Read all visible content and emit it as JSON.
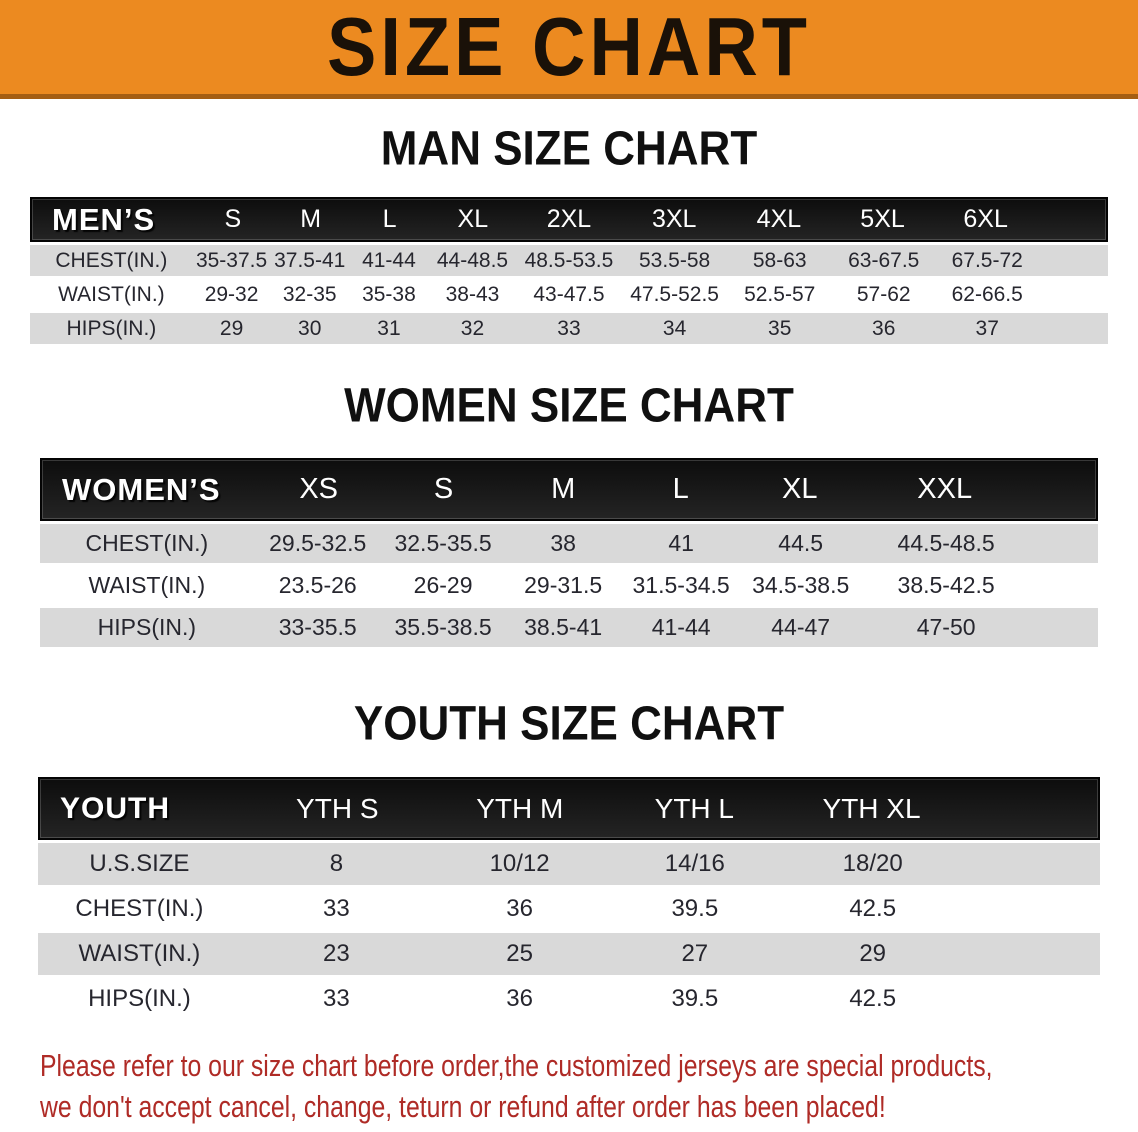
{
  "banner": {
    "title": "SIZE CHART",
    "bg_color": "#EC8A20",
    "border_color": "#A55E13",
    "text_color": "#1A1108"
  },
  "sections": [
    {
      "title": "MAN SIZE CHART",
      "header_label": "MEN’S",
      "columns": [
        "S",
        "M",
        "L",
        "XL",
        "2XL",
        "3XL",
        "4XL",
        "5XL",
        "6XL"
      ],
      "rows": [
        {
          "label": "CHEST(IN.)",
          "values": [
            "35-37.5",
            "37.5-41",
            "41-44",
            "44-48.5",
            "48.5-53.5",
            "53.5-58",
            "58-63",
            "63-67.5",
            "67.5-72"
          ]
        },
        {
          "label": "WAIST(IN.)",
          "values": [
            "29-32",
            "32-35",
            "35-38",
            "38-43",
            "43-47.5",
            "47.5-52.5",
            "52.5-57",
            "57-62",
            "62-66.5"
          ]
        },
        {
          "label": "HIPS(IN.)",
          "values": [
            "29",
            "30",
            "31",
            "32",
            "33",
            "34",
            "35",
            "36",
            "37"
          ]
        }
      ]
    },
    {
      "title": "WOMEN SIZE CHART",
      "header_label": "WOMEN’S",
      "columns": [
        "XS",
        "S",
        "M",
        "L",
        "XL",
        "XXL"
      ],
      "rows": [
        {
          "label": "CHEST(IN.)",
          "values": [
            "29.5-32.5",
            "32.5-35.5",
            "38",
            "41",
            "44.5",
            "44.5-48.5"
          ]
        },
        {
          "label": "WAIST(IN.)",
          "values": [
            "23.5-26",
            "26-29",
            "29-31.5",
            "31.5-34.5",
            "34.5-38.5",
            "38.5-42.5"
          ]
        },
        {
          "label": "HIPS(IN.)",
          "values": [
            "33-35.5",
            "35.5-38.5",
            "38.5-41",
            "41-44",
            "44-47",
            "47-50"
          ]
        }
      ]
    },
    {
      "title": "YOUTH SIZE CHART",
      "header_label": "YOUTH",
      "columns": [
        "YTH S",
        "YTH M",
        "YTH L",
        "YTH XL"
      ],
      "rows": [
        {
          "label": "U.S.SIZE",
          "values": [
            "8",
            "10/12",
            "14/16",
            "18/20"
          ]
        },
        {
          "label": "CHEST(IN.)",
          "values": [
            "33",
            "36",
            "39.5",
            "42.5"
          ]
        },
        {
          "label": "WAIST(IN.)",
          "values": [
            "23",
            "25",
            "27",
            "29"
          ]
        },
        {
          "label": "HIPS(IN.)",
          "values": [
            "33",
            "36",
            "39.5",
            "42.5"
          ]
        }
      ]
    }
  ],
  "table_colors": {
    "header_bg": "#161616",
    "header_text": "#FFFFFF",
    "row_gray": "#D9D9D9",
    "row_white": "#FFFFFF",
    "value_text": "#26262E"
  },
  "footer": {
    "line1": "Please refer to our size chart before order,the customized jerseys are special products,",
    "line2": "we don't accept cancel, change, teturn or refund after order has been placed!",
    "text_color": "#AF2B26"
  }
}
